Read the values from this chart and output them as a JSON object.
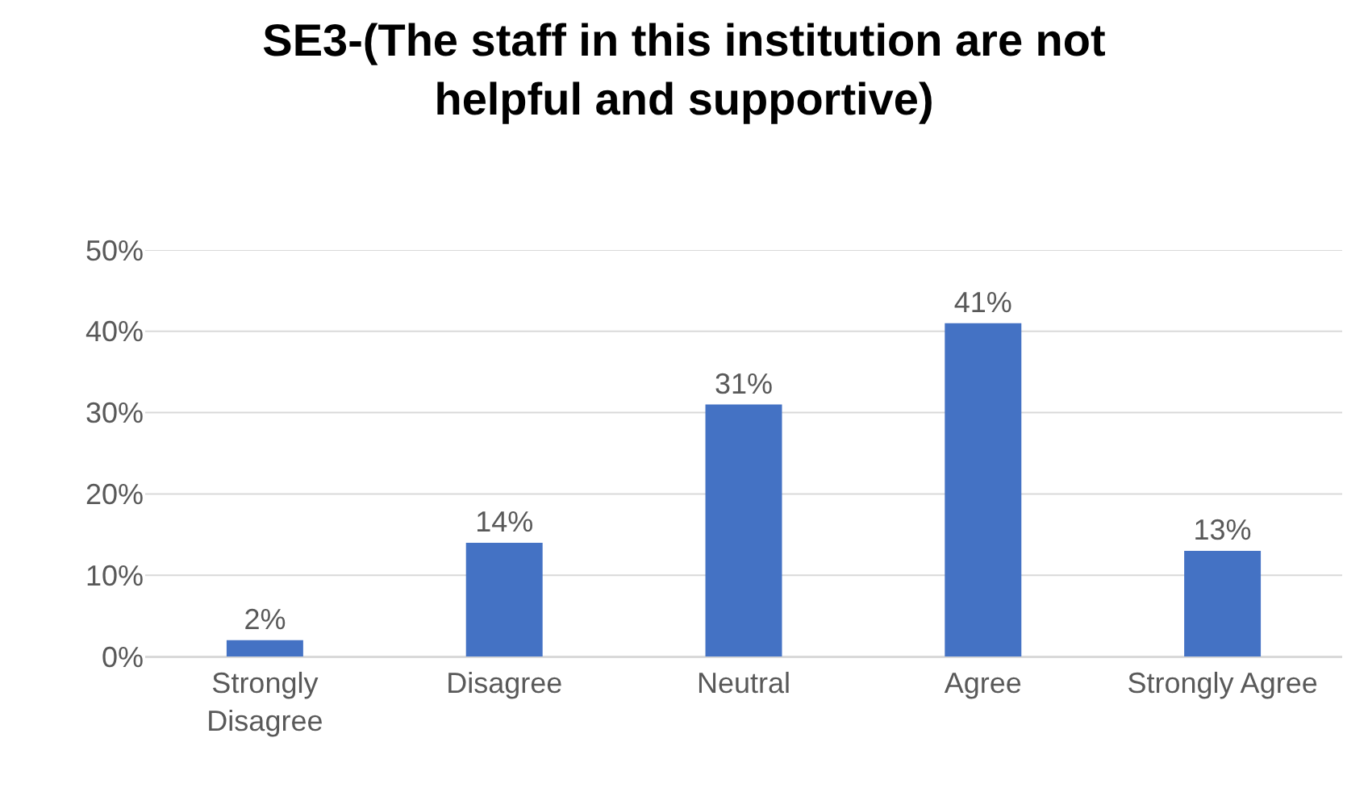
{
  "chart_data": {
    "type": "bar",
    "title": "SE3-(The staff in this institution are not helpful and supportive)",
    "categories": [
      "Strongly Disagree",
      "Disagree",
      "Neutral",
      "Agree",
      "Strongly Agree"
    ],
    "values": [
      2,
      14,
      31,
      41,
      13
    ],
    "value_labels": [
      "2%",
      "14%",
      "31%",
      "41%",
      "13%"
    ],
    "color": "#4472c4",
    "ylim": [
      0,
      50
    ],
    "yticks": [
      {
        "value": 0,
        "label": "0%"
      },
      {
        "value": 10,
        "label": "10%"
      },
      {
        "value": 20,
        "label": "20%"
      },
      {
        "value": 30,
        "label": "30%"
      },
      {
        "value": 40,
        "label": "40%"
      },
      {
        "value": 50,
        "label": "50%"
      }
    ],
    "grid": "y"
  }
}
